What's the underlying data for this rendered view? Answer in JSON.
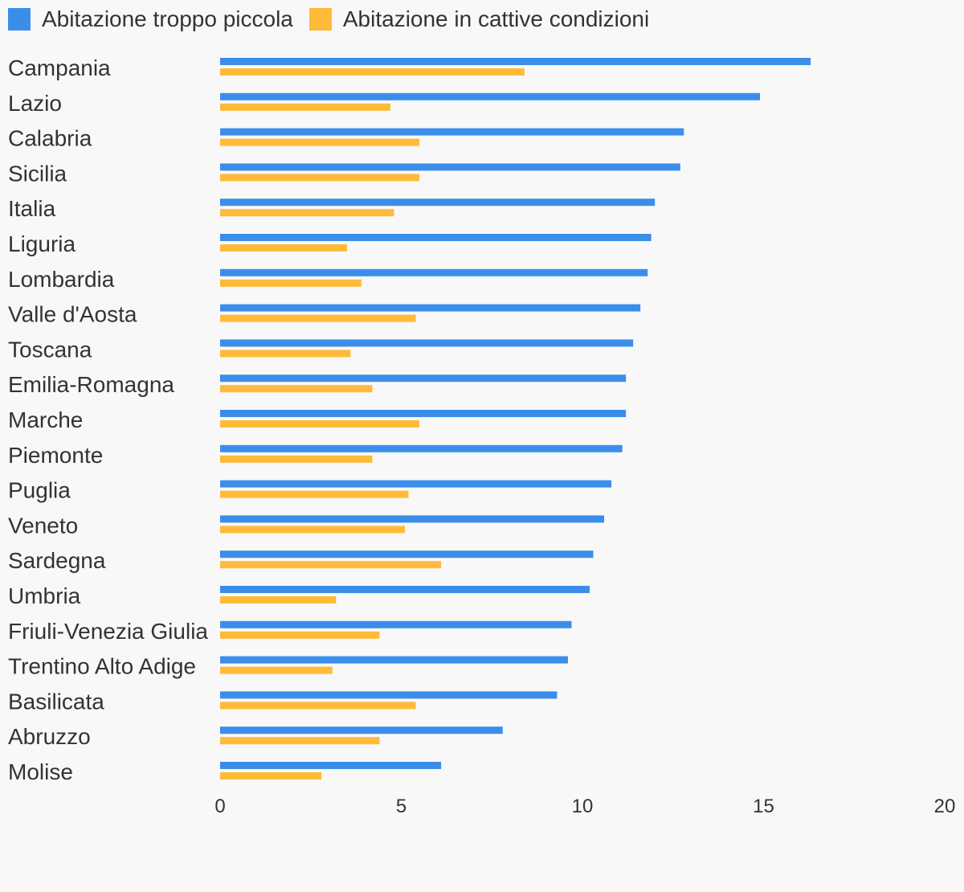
{
  "chart_data": {
    "type": "bar",
    "orientation": "horizontal",
    "categories": [
      "Campania",
      "Lazio",
      "Calabria",
      "Sicilia",
      "Italia",
      "Liguria",
      "Lombardia",
      "Valle d'Aosta",
      "Toscana",
      "Emilia-Romagna",
      "Marche",
      "Piemonte",
      "Puglia",
      "Veneto",
      "Sardegna",
      "Umbria",
      "Friuli-Venezia Giulia",
      "Trentino Alto Adige",
      "Basilicata",
      "Abruzzo",
      "Molise"
    ],
    "series": [
      {
        "name": "Abitazione troppo piccola",
        "color": "#3a8eea",
        "values": [
          16.3,
          14.9,
          12.8,
          12.7,
          12.0,
          11.9,
          11.8,
          11.6,
          11.4,
          11.2,
          11.2,
          11.1,
          10.8,
          10.6,
          10.3,
          10.2,
          9.7,
          9.6,
          9.3,
          7.8,
          6.1
        ]
      },
      {
        "name": "Abitazione in cattive condizioni",
        "color": "#ffba38",
        "values": [
          8.4,
          4.7,
          5.5,
          5.5,
          4.8,
          3.5,
          3.9,
          5.4,
          3.6,
          4.2,
          5.5,
          4.2,
          5.2,
          5.1,
          6.1,
          3.2,
          4.4,
          3.1,
          5.4,
          4.4,
          2.8
        ]
      }
    ],
    "x_ticks": [
      "0",
      "5",
      "10",
      "15",
      "20"
    ],
    "xlim": [
      0,
      20
    ],
    "title": "",
    "xlabel": "",
    "ylabel": "",
    "grid": false,
    "legend_position": "top-left"
  }
}
